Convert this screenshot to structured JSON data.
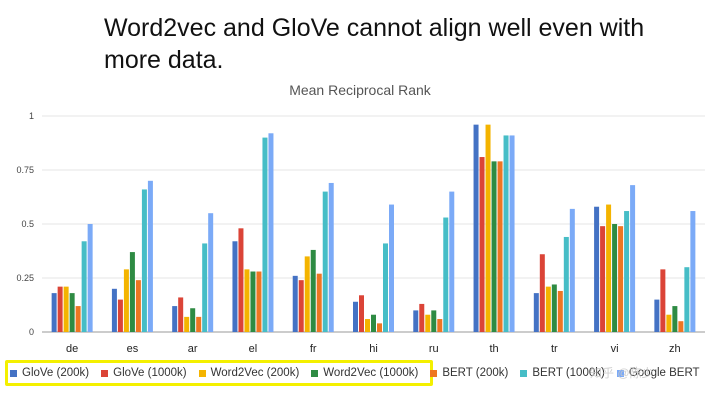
{
  "slide": {
    "title": "Word2vec and GloVe cannot align well even with more data."
  },
  "watermark": "知乎 @陈少",
  "chart_data": {
    "type": "bar",
    "title": "Mean Reciprocal Rank",
    "xlabel": "",
    "ylabel": "",
    "ylim": [
      0,
      1
    ],
    "yticks": [
      0,
      0.25,
      0.5,
      0.75,
      1
    ],
    "ytick_labels": [
      "0",
      "0.25",
      "0.5",
      "0.75",
      "1"
    ],
    "grid": "horizontal",
    "legend_position": "bottom",
    "categories": [
      "de",
      "es",
      "ar",
      "el",
      "fr",
      "hi",
      "ru",
      "th",
      "tr",
      "vi",
      "zh"
    ],
    "series": [
      {
        "name": "GloVe (200k)",
        "color": "#4472c4",
        "values": [
          0.18,
          0.2,
          0.12,
          0.42,
          0.26,
          0.14,
          0.1,
          0.96,
          0.18,
          0.58,
          0.15
        ]
      },
      {
        "name": "GloVe (1000k)",
        "color": "#db4437",
        "values": [
          0.21,
          0.15,
          0.16,
          0.48,
          0.24,
          0.17,
          0.13,
          0.81,
          0.36,
          0.49,
          0.29
        ]
      },
      {
        "name": "Word2Vec (200k)",
        "color": "#f4b400",
        "values": [
          0.21,
          0.29,
          0.07,
          0.29,
          0.35,
          0.06,
          0.08,
          0.96,
          0.21,
          0.59,
          0.08
        ]
      },
      {
        "name": "Word2Vec (1000k)",
        "color": "#2e8b43",
        "values": [
          0.18,
          0.37,
          0.11,
          0.28,
          0.38,
          0.08,
          0.1,
          0.79,
          0.22,
          0.5,
          0.12
        ]
      },
      {
        "name": "BERT (200k)",
        "color": "#ee7622",
        "values": [
          0.12,
          0.24,
          0.07,
          0.28,
          0.27,
          0.04,
          0.06,
          0.79,
          0.19,
          0.49,
          0.05
        ]
      },
      {
        "name": "BERT (1000k)",
        "color": "#46bdc6",
        "values": [
          0.42,
          0.66,
          0.41,
          0.9,
          0.65,
          0.41,
          0.53,
          0.91,
          0.44,
          0.56,
          0.3
        ]
      },
      {
        "name": "Google BERT",
        "color": "#7baaf7",
        "values": [
          0.5,
          0.7,
          0.55,
          0.92,
          0.69,
          0.59,
          0.65,
          0.91,
          0.57,
          0.68,
          0.56
        ]
      }
    ],
    "visible_legend": [
      {
        "label": "GloVe (200k)",
        "color": "#4472c4"
      },
      {
        "label": "GloVe (1000k)",
        "color": "#db4437"
      },
      {
        "label": "Word2Vec (200k)",
        "color": "#f4b400"
      },
      {
        "label": "Word2Vec (1000k)",
        "color": "#2e8b43"
      },
      {
        "label": "BERT (200k)",
        "color": "#ee7622"
      },
      {
        "label": "BERT (1000k)",
        "color": "#46bdc6"
      },
      {
        "label": "Google BERT",
        "color": "#7baaf7"
      }
    ]
  }
}
